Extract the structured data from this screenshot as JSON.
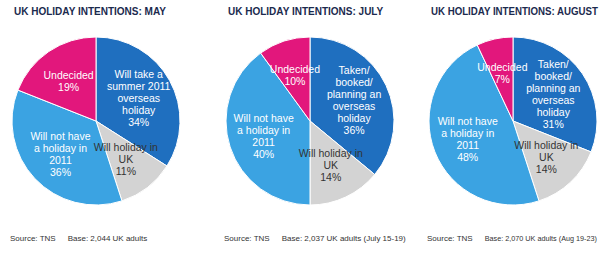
{
  "chart_data": [
    {
      "type": "pie",
      "title": "UK HOLIDAY INTENTIONS: MAY",
      "categories": [
        "Will take a summer 2011 overseas holiday",
        "Will holiday in UK",
        "Will not have a holiday in 2011",
        "Undecided"
      ],
      "values": [
        34,
        11,
        36,
        19
      ],
      "value_labels": [
        "34%",
        "11%",
        "36%",
        "19%"
      ],
      "colors": [
        "#1f6fbf",
        "#d3d3d3",
        "#3ba3e2",
        "#e2177c"
      ],
      "data_labels": true,
      "source": "Source: TNS",
      "base": "Base: 2,044 UK adults"
    },
    {
      "type": "pie",
      "title": "UK HOLIDAY INTENTIONS: JULY",
      "categories": [
        "Taken/booked/planning an overseas holiday",
        "Will holiday in UK",
        "Will not have a holiday in 2011",
        "Undecided"
      ],
      "values": [
        36,
        14,
        40,
        10
      ],
      "value_labels": [
        "36%",
        "14%",
        "40%",
        "10%"
      ],
      "colors": [
        "#1f6fbf",
        "#d3d3d3",
        "#3ba3e2",
        "#e2177c"
      ],
      "data_labels": true,
      "source": "Source: TNS",
      "base": "Base: 2,037 UK adults (July 15-19)"
    },
    {
      "type": "pie",
      "title": "UK HOLIDAY INTENTIONS: AUGUST",
      "categories": [
        "Taken/booked/planning an overseas holiday",
        "Will holiday in UK",
        "Will not have a holiday in 2011",
        "Undecided"
      ],
      "values": [
        31,
        14,
        48,
        7
      ],
      "value_labels": [
        "31%",
        "14%",
        "48%",
        "7%"
      ],
      "colors": [
        "#1f6fbf",
        "#d3d3d3",
        "#3ba3e2",
        "#e2177c"
      ],
      "data_labels": true,
      "source": "Source: TNS",
      "base": "Base: 2,070 UK adults (Aug 19-23)"
    }
  ]
}
